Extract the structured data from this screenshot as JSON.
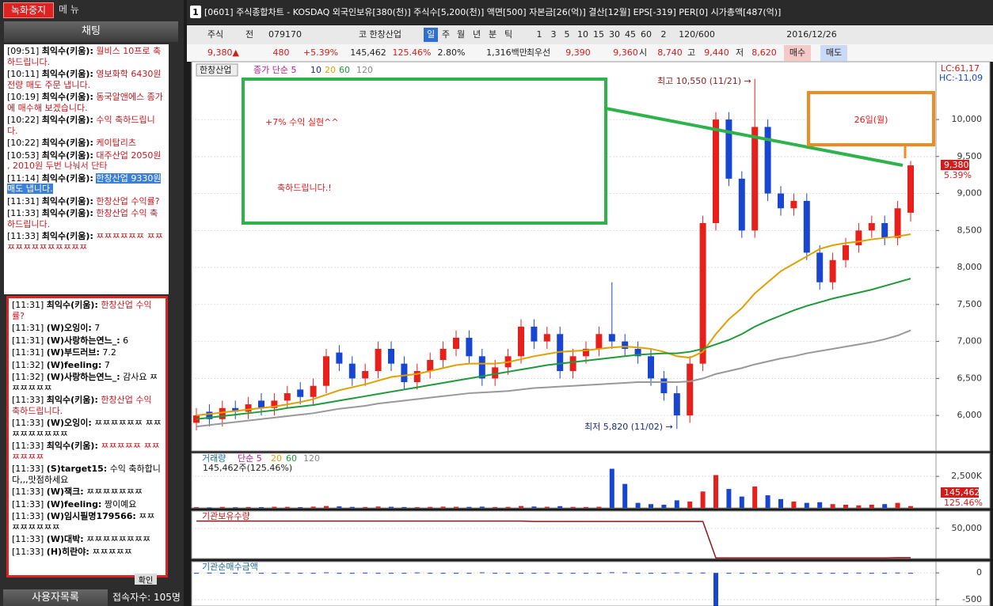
{
  "left": {
    "record_button": "녹화중지",
    "menu": "메 뉴",
    "chat_title": "채팅",
    "upper_chat": [
      [
        "[09:51]",
        "최익수(키움):",
        "월비스 10프로 축하드립니다."
      ],
      [
        "[10:11]",
        "최익수(키움):",
        "영보화학 6430원 전량 매도 주문 냅니다."
      ],
      [
        "[10:19]",
        "최익수(키움):",
        "동국알앤에스 종가에 매수해 보겠습니다."
      ],
      [
        "[10:22]",
        "최익수(키움):",
        "수익 축하드립니다."
      ],
      [
        "[10:22]",
        "최익수(키움):",
        "케이탑리츠"
      ],
      [
        "[10:53]",
        "최익수(키움):",
        "대주산업 2050원 , 2010원 두번 나눠서 단타"
      ],
      [
        "[11:14]",
        "최익수(키움):",
        "한창산업 9330원 매도 냅니다."
      ],
      [
        "[11:31]",
        "최익수(키움):",
        "한창산업 수익률?"
      ],
      [
        "[11:33]",
        "최익수(키움):",
        "한창산업 수익 축하드립니다."
      ],
      [
        "[11:33]",
        "최익수(키움):",
        "ㅉㅉㅉㅉㅉㅉ ㅉㅉㅉㅉㅉㅉㅉㅉㅉㅉㅉㅉ"
      ]
    ],
    "lower_chat": [
      [
        "[11:31]",
        "최익수(키움):",
        "한창산업 수익률?"
      ],
      [
        "[11:31]",
        "(W)오잉이:",
        "7"
      ],
      [
        "[11:31]",
        "(W)사랑하는연느_:",
        "6"
      ],
      [
        "[11:31]",
        "(W)부드러브:",
        "7.2"
      ],
      [
        "[11:32]",
        "(W)feeling:",
        "7"
      ],
      [
        "[11:32]",
        "(W)사랑하는연느_:",
        "감사요 ㅉㅉㅉㅉㅉㅉ"
      ],
      [
        "[11:33]",
        "최익수(키움):",
        "한창산업 수익 축하드립니다."
      ],
      [
        "[11:33]",
        "(W)오잉이:",
        "ㅉㅉㅉㅉㅉㅉ ㅉㅉㅉㅉㅉㅉㅉㅉㅉ"
      ],
      [
        "[11:33]",
        "최익수(키움):",
        "ㅉㅉㅉㅉㅉ ㅉㅉㅉㅉㅉㅉ"
      ],
      [
        "[11:33]",
        "(S)target15:",
        "수익 축하합니다,,,맛점하세요"
      ],
      [
        "[11:33]",
        "(W)잭크:",
        "ㅉㅉㅉㅉㅉㅉㅉ"
      ],
      [
        "[11:33]",
        "(W)feeling:",
        "짱이예요"
      ],
      [
        "[11:33]",
        "(W)임시필명179566:",
        "ㅉㅉㅉㅉㅉㅉㅉㅉ"
      ],
      [
        "[11:33]",
        "(W)대박:",
        "ㅉㅉㅉㅉㅉㅉㅉㅉ"
      ],
      [
        "[11:33]",
        "(H)히란야:",
        "ㅉㅉㅉㅉㅉ"
      ]
    ],
    "confirm": "확인",
    "user_list": "사용자목록",
    "user_count": "접속자수: 105명"
  },
  "window": {
    "number": "1",
    "title": "[0601] 주식종합차트 - KOSDAQ 외국인보유[380(천)] 주식수[5,200(천)] 액면[500] 자본금[26(억)] 결산[12월] EPS[-319] PER[0] 시가총액[487(억)]"
  },
  "toolbar": [
    "주식",
    "전",
    "079170",
    "코 한창산업",
    "일",
    "주",
    "월",
    "년",
    "분",
    "틱",
    "1",
    "3",
    "5",
    "10",
    "15",
    "30",
    "45",
    "60",
    "2",
    "120/600",
    "2016/12/26"
  ],
  "info_row": [
    "9,380▲",
    "480",
    "+5.39%",
    "145,462",
    "125.46%",
    "2.80%",
    "1,316백만",
    "최우선",
    "9,390",
    "9,360",
    "시",
    "8,740",
    "고",
    "9,440",
    "저",
    "8,620",
    "매수",
    "매도"
  ],
  "annotation": {
    "main_line1": "+7% 수익 실현^^",
    "main_line2": "축하드립니다.!",
    "date_box": "26일(월)"
  },
  "chart_data": [
    {
      "type": "candlestick",
      "name": "한창산업",
      "legend": [
        "종가 단순 5",
        "10",
        "20",
        "60",
        "120"
      ],
      "up_color": "#e8201c",
      "down_color": "#1846d0",
      "open": [
        5900,
        6050,
        5950,
        6100,
        6050,
        6200,
        6100,
        6200,
        6350,
        6250,
        6400,
        6850,
        6700,
        6500,
        6600,
        6900,
        6700,
        6450,
        6600,
        6750,
        6900,
        7050,
        6800,
        6500,
        6650,
        6800,
        7200,
        7000,
        7100,
        6600,
        6800,
        6900,
        7100,
        7000,
        6900,
        6800,
        6500,
        6300,
        6000,
        6700,
        8600,
        10000,
        9200,
        8500,
        9900,
        9000,
        8800,
        8900,
        8200,
        7800,
        8100,
        8300,
        8500,
        8600,
        8400,
        8740
      ],
      "high": [
        6100,
        6150,
        6200,
        6200,
        6250,
        6300,
        6300,
        6400,
        6450,
        6500,
        6900,
        6950,
        6800,
        6700,
        7000,
        7000,
        6800,
        6700,
        6850,
        7000,
        7150,
        7150,
        6900,
        6750,
        6900,
        7300,
        7300,
        7200,
        7200,
        6900,
        7000,
        7200,
        7800,
        7100,
        7000,
        6900,
        6600,
        6400,
        6800,
        8700,
        10100,
        10100,
        9300,
        10550,
        10000,
        9100,
        9000,
        9000,
        8300,
        8200,
        8400,
        8600,
        8700,
        8700,
        8900,
        9440
      ],
      "low": [
        5800,
        5850,
        5850,
        5950,
        5950,
        6000,
        6000,
        6100,
        6150,
        6150,
        6300,
        6600,
        6400,
        6400,
        6500,
        6600,
        6350,
        6350,
        6500,
        6650,
        6800,
        6700,
        6400,
        6400,
        6550,
        6700,
        6900,
        6900,
        6500,
        6500,
        6700,
        6800,
        6900,
        6800,
        6700,
        6400,
        6200,
        5820,
        5900,
        6600,
        8500,
        9100,
        8400,
        8400,
        8900,
        8700,
        8700,
        8100,
        7700,
        7700,
        8000,
        8200,
        8400,
        8300,
        8300,
        8620
      ],
      "close": [
        6000,
        5950,
        6100,
        6050,
        6150,
        6100,
        6200,
        6300,
        6250,
        6400,
        6800,
        6700,
        6500,
        6600,
        6900,
        6700,
        6450,
        6600,
        6750,
        6900,
        7050,
        6800,
        6500,
        6650,
        6800,
        7200,
        7000,
        7100,
        6600,
        6800,
        6900,
        7100,
        7000,
        6900,
        6800,
        6500,
        6300,
        6000,
        6700,
        8600,
        10000,
        9200,
        8500,
        9900,
        9000,
        8800,
        8900,
        8200,
        7800,
        8100,
        8300,
        8500,
        8600,
        8400,
        8800,
        9380
      ],
      "series": [
        {
          "color": "#e0a000",
          "values": [
            6000,
            6020,
            6040,
            6060,
            6080,
            6100,
            6120,
            6150,
            6180,
            6220,
            6280,
            6340,
            6380,
            6420,
            6470,
            6520,
            6540,
            6560,
            6600,
            6640,
            6680,
            6700,
            6700,
            6700,
            6720,
            6760,
            6800,
            6830,
            6860,
            6870,
            6880,
            6900,
            6920,
            6930,
            6920,
            6900,
            6860,
            6800,
            6780,
            6860,
            7100,
            7300,
            7450,
            7650,
            7800,
            7950,
            8050,
            8150,
            8250,
            8300,
            8330,
            8350,
            8380,
            8400,
            8420,
            8450
          ]
        },
        {
          "color": "#1f9a3a",
          "values": [
            5950,
            5970,
            5990,
            6010,
            6030,
            6050,
            6070,
            6100,
            6120,
            6140,
            6170,
            6200,
            6230,
            6260,
            6290,
            6320,
            6350,
            6380,
            6410,
            6440,
            6470,
            6500,
            6530,
            6560,
            6590,
            6620,
            6650,
            6680,
            6700,
            6720,
            6740,
            6760,
            6780,
            6800,
            6820,
            6830,
            6840,
            6840,
            6860,
            6900,
            6960,
            7020,
            7100,
            7200,
            7280,
            7350,
            7420,
            7480,
            7530,
            7580,
            7620,
            7660,
            7700,
            7750,
            7800,
            7850
          ]
        },
        {
          "color": "#999999",
          "values": [
            5850,
            5870,
            5890,
            5910,
            5930,
            5950,
            5970,
            5990,
            6010,
            6030,
            6060,
            6090,
            6110,
            6130,
            6160,
            6180,
            6200,
            6220,
            6240,
            6260,
            6280,
            6300,
            6310,
            6320,
            6330,
            6350,
            6370,
            6380,
            6390,
            6400,
            6410,
            6420,
            6430,
            6440,
            6450,
            6450,
            6450,
            6450,
            6460,
            6500,
            6560,
            6600,
            6640,
            6690,
            6730,
            6770,
            6800,
            6840,
            6870,
            6900,
            6930,
            6960,
            6990,
            7030,
            7080,
            7150
          ]
        }
      ],
      "ylim": [
        5520,
        10760
      ],
      "yticks": [
        {
          "value": 6000,
          "label": "6,000"
        },
        {
          "value": 6500,
          "label": "6,500"
        },
        {
          "value": 7000,
          "label": "7,000"
        },
        {
          "value": 7500,
          "label": "7,500"
        },
        {
          "value": 8000,
          "label": "8,000"
        },
        {
          "value": 8500,
          "label": "8,500"
        },
        {
          "value": 9000,
          "label": "9,000"
        },
        {
          "value": 9500,
          "label": "9,500"
        },
        {
          "value": 10000,
          "label": "10,000"
        }
      ],
      "high_note": "최고 10,550 (11/21) →",
      "low_note": "최저 5,820 (11/02) →",
      "lc": "LC:61,17",
      "hc": "HC:-11,09",
      "last": "9,380",
      "last_pct": "5.39%"
    },
    {
      "type": "bar",
      "name": "거래량",
      "legend": [
        "단순 5",
        "20",
        "60",
        "120"
      ],
      "caption": "145,462주(125.46%)",
      "values": [
        60000,
        40000,
        80000,
        50000,
        70000,
        60000,
        90000,
        80000,
        60000,
        100000,
        150000,
        120000,
        80000,
        70000,
        110000,
        90000,
        70000,
        60000,
        80000,
        100000,
        90000,
        80000,
        100000,
        70000,
        80000,
        150000,
        110000,
        90000,
        140000,
        80000,
        70000,
        90000,
        3100000,
        1900000,
        400000,
        300000,
        250000,
        600000,
        500000,
        1300000,
        2600000,
        1500000,
        900000,
        1700000,
        1000000,
        700000,
        500000,
        400000,
        450000,
        300000,
        250000,
        200000,
        250000,
        300000,
        400000,
        145462
      ],
      "ylim": [
        0,
        4200000
      ],
      "yticks": [
        {
          "value": 2500000,
          "label": "2,500K"
        }
      ],
      "last": "145,462",
      "last_pct": "125.46%"
    },
    {
      "type": "line",
      "name": "기관보유수량",
      "color": "#8b1a1a",
      "values": [
        62000,
        62000,
        62000,
        62000,
        62000,
        62000,
        62000,
        62000,
        62000,
        62000,
        62000,
        62000,
        62000,
        62000,
        62000,
        62000,
        62000,
        62000,
        62000,
        62000,
        62000,
        62000,
        62000,
        62000,
        62000,
        62000,
        61500,
        61500,
        61500,
        61500,
        61500,
        61500,
        61500,
        61500,
        61500,
        61500,
        61500,
        61500,
        61500,
        61500,
        1000,
        1000,
        1000,
        1000,
        1000,
        1000,
        1000,
        1000,
        1000,
        1000,
        1000,
        1000,
        1000,
        1000,
        1500,
        1500
      ],
      "ylim": [
        0,
        76000
      ],
      "yticks": [
        {
          "value": 50000,
          "label": "50,000"
        }
      ]
    },
    {
      "type": "bar",
      "name": "기관순매수금액",
      "color": "#1846d0",
      "values": [
        0,
        5,
        0,
        0,
        8,
        0,
        0,
        6,
        0,
        0,
        10,
        0,
        0,
        5,
        0,
        0,
        0,
        8,
        0,
        0,
        0,
        0,
        10,
        0,
        0,
        0,
        0,
        5,
        0,
        0,
        0,
        0,
        12,
        10,
        0,
        0,
        0,
        8,
        0,
        6,
        -620,
        0,
        0,
        0,
        5,
        0,
        0,
        0,
        0,
        0,
        0,
        5,
        0,
        0,
        6,
        0
      ],
      "ylim": [
        -620,
        180
      ],
      "yticks": [
        0,
        -500
      ]
    }
  ]
}
